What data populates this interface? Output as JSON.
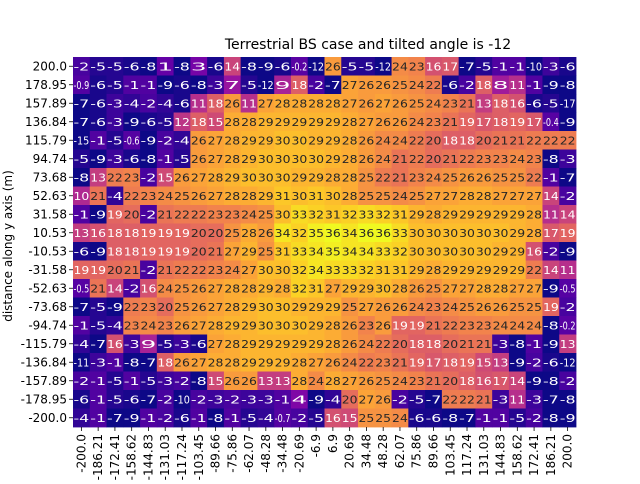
{
  "chart_data": {
    "type": "heatmap",
    "title": "Terrestrial BS case and tilted angle is -12",
    "xlabel": "",
    "ylabel": "distance along y axis (m)",
    "x_tick_labels": [
      "-200.0",
      "-186.21",
      "-172.41",
      "-158.62",
      "-144.83",
      "-131.03",
      "-117.24",
      "-103.45",
      "-89.66",
      "-75.86",
      "-62.07",
      "-48.28",
      "-34.48",
      "-20.69",
      "-6.9",
      "6.9",
      "20.69",
      "34.48",
      "48.28",
      "62.07",
      "75.86",
      "89.66",
      "103.45",
      "117.24",
      "131.03",
      "144.83",
      "158.62",
      "172.41",
      "186.21",
      "200.0"
    ],
    "y_tick_labels": [
      "200.0",
      "178.95",
      "157.89",
      "136.84",
      "115.79",
      "94.74",
      "73.68",
      "52.63",
      "31.58",
      "10.53",
      "-10.53",
      "-31.58",
      "-52.63",
      "-73.68",
      "-94.74",
      "-115.79",
      "-136.84",
      "-157.89",
      "-178.95",
      "-200.0"
    ],
    "colormap": "plasma",
    "vmin": -7,
    "vmax": 36,
    "annotations": true,
    "colorbar": false,
    "values": [
      [
        -2,
        -5,
        -5,
        -6,
        -8,
        1,
        -8,
        3,
        -6,
        14,
        -8,
        -9,
        -6,
        -0.2,
        -12,
        26,
        -5,
        -5,
        -12,
        24,
        23,
        16,
        17,
        -7,
        -5,
        -1,
        -1,
        -10,
        -3,
        -6
      ],
      [
        -0.9,
        -6,
        -5,
        -1,
        -1,
        -9,
        -6,
        -8,
        -3,
        7,
        -5,
        -12,
        9,
        18,
        -2,
        -7,
        27,
        26,
        26,
        25,
        24,
        22,
        -6,
        -2,
        18,
        8,
        11,
        -1,
        -9,
        -8
      ],
      [
        -7,
        -6,
        -3,
        -4,
        -2,
        -4,
        -6,
        11,
        18,
        26,
        11,
        27,
        28,
        28,
        28,
        28,
        27,
        26,
        27,
        26,
        25,
        24,
        23,
        21,
        13,
        18,
        16,
        -6,
        -5,
        -17
      ],
      [
        -7,
        -6,
        -3,
        -9,
        -6,
        -5,
        12,
        18,
        15,
        28,
        28,
        29,
        29,
        29,
        29,
        29,
        28,
        27,
        26,
        26,
        24,
        23,
        21,
        19,
        17,
        18,
        19,
        17,
        -0.4,
        -9
      ],
      [
        -15,
        -1,
        -5,
        -0.6,
        -9,
        -2,
        -4,
        26,
        27,
        28,
        29,
        29,
        30,
        30,
        29,
        29,
        28,
        26,
        24,
        24,
        22,
        20,
        18,
        18,
        20,
        21,
        21,
        22,
        22,
        22
      ],
      [
        -5,
        -9,
        -3,
        -6,
        -8,
        -1,
        -5,
        26,
        27,
        28,
        29,
        30,
        30,
        30,
        30,
        29,
        28,
        26,
        24,
        21,
        22,
        20,
        21,
        22,
        23,
        23,
        24,
        23,
        -8,
        -3
      ],
      [
        -8,
        13,
        22,
        23,
        -2,
        15,
        26,
        27,
        28,
        29,
        30,
        30,
        30,
        29,
        29,
        28,
        28,
        25,
        22,
        21,
        23,
        24,
        25,
        26,
        26,
        25,
        25,
        22,
        -1,
        -7
      ],
      [
        10,
        21,
        -4,
        22,
        23,
        24,
        25,
        26,
        27,
        28,
        28,
        29,
        31,
        30,
        31,
        30,
        28,
        25,
        25,
        24,
        25,
        27,
        27,
        28,
        28,
        27,
        27,
        27,
        14,
        -2
      ],
      [
        -1,
        -9,
        19,
        20,
        -2,
        21,
        22,
        22,
        23,
        23,
        24,
        25,
        30,
        33,
        32,
        31,
        32,
        33,
        32,
        31,
        29,
        28,
        29,
        29,
        29,
        29,
        29,
        28,
        11,
        14
      ],
      [
        13,
        16,
        18,
        18,
        19,
        19,
        19,
        20,
        20,
        25,
        28,
        26,
        34,
        32,
        35,
        36,
        34,
        36,
        36,
        33,
        30,
        30,
        30,
        30,
        30,
        30,
        29,
        28,
        17,
        19
      ],
      [
        -6,
        -9,
        18,
        18,
        19,
        19,
        19,
        20,
        21,
        27,
        29,
        25,
        31,
        33,
        34,
        35,
        34,
        34,
        33,
        32,
        30,
        30,
        30,
        30,
        30,
        29,
        29,
        16,
        -2,
        -9
      ],
      [
        19,
        19,
        20,
        21,
        -2,
        21,
        22,
        22,
        23,
        24,
        27,
        30,
        30,
        32,
        34,
        33,
        33,
        32,
        31,
        31,
        29,
        28,
        29,
        29,
        29,
        29,
        29,
        22,
        14,
        11
      ],
      [
        -0.5,
        21,
        14,
        -2,
        16,
        24,
        25,
        26,
        27,
        28,
        28,
        29,
        28,
        32,
        31,
        27,
        29,
        29,
        30,
        28,
        26,
        25,
        27,
        27,
        28,
        28,
        27,
        27,
        -9,
        -0.5
      ],
      [
        -7,
        -5,
        -9,
        22,
        23,
        20,
        25,
        26,
        27,
        28,
        29,
        30,
        30,
        29,
        29,
        29,
        25,
        27,
        26,
        26,
        24,
        23,
        24,
        25,
        26,
        26,
        25,
        25,
        19,
        -2
      ],
      [
        -1,
        -5,
        -4,
        23,
        24,
        23,
        26,
        27,
        28,
        29,
        29,
        30,
        30,
        30,
        29,
        28,
        26,
        23,
        26,
        19,
        19,
        21,
        22,
        23,
        23,
        24,
        24,
        24,
        -8,
        -0.2
      ],
      [
        -4,
        -7,
        16,
        -3,
        9,
        -5,
        -3,
        -6,
        27,
        28,
        29,
        29,
        29,
        29,
        29,
        28,
        26,
        24,
        22,
        20,
        18,
        18,
        20,
        21,
        21,
        -3,
        -8,
        -1,
        -9,
        13
      ],
      [
        -11,
        -3,
        -1,
        -8,
        -7,
        18,
        26,
        27,
        28,
        28,
        29,
        29,
        29,
        28,
        27,
        26,
        24,
        22,
        23,
        21,
        19,
        17,
        18,
        19,
        15,
        13,
        -9,
        -2,
        -6,
        -12
      ],
      [
        -2,
        -1,
        -5,
        -1,
        -5,
        -3,
        -2,
        -8,
        15,
        26,
        26,
        13,
        13,
        28,
        24,
        28,
        27,
        26,
        25,
        24,
        23,
        21,
        20,
        18,
        16,
        17,
        14,
        -9,
        -8,
        -2
      ],
      [
        -6,
        -1,
        -5,
        -6,
        -7,
        -2,
        -10,
        -2,
        -3,
        -2,
        -3,
        -3,
        -1,
        4,
        -9,
        -4,
        20,
        27,
        26,
        -2,
        -5,
        -7,
        22,
        22,
        21,
        -3,
        11,
        -3,
        -7,
        -8
      ],
      [
        -4,
        -1,
        -7,
        -9,
        -1,
        -2,
        -6,
        -1,
        -8,
        -1,
        -5,
        -4,
        -0.7,
        -2,
        -5,
        16,
        15,
        25,
        25,
        24,
        -6,
        -6,
        -8,
        -7,
        -1,
        -1,
        -5,
        -2,
        -8,
        -9
      ]
    ]
  }
}
